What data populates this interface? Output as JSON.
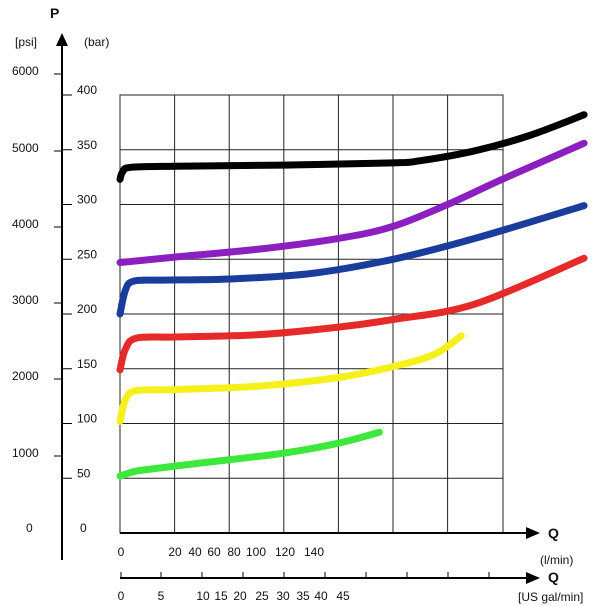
{
  "chart_data": {
    "type": "line",
    "title": "",
    "y_axis": {
      "letter": "P",
      "psi_unit": "[psi]",
      "bar_unit": "(bar)",
      "psi_zero": "0",
      "bar_zero": "0",
      "psi_ticks": [
        "6000",
        "5000",
        "4000",
        "3000",
        "2000",
        "1000"
      ],
      "bar_ticks": [
        "400",
        "350",
        "300",
        "250",
        "200",
        "150",
        "100",
        "50"
      ],
      "bar_range": [
        0,
        400
      ]
    },
    "x_axis_lmin": {
      "letter": "Q",
      "unit": "(l/min)",
      "ticks": [
        "0",
        "20",
        "40",
        "60",
        "80",
        "100",
        "120",
        "140"
      ]
    },
    "x_axis_gal": {
      "letter": "Q",
      "unit": "[US gal/min]",
      "ticks": [
        "0",
        "5",
        "10",
        "15",
        "20",
        "25",
        "30",
        "35",
        "40",
        "45"
      ]
    },
    "grid": true,
    "series": [
      {
        "color": "#000000",
        "points": [
          [
            0,
            323
          ],
          [
            1,
            330
          ],
          [
            4,
            334
          ],
          [
            20,
            335
          ],
          [
            60,
            336
          ],
          [
            100,
            338
          ],
          [
            110,
            340
          ],
          [
            130,
            349
          ],
          [
            150,
            363
          ],
          [
            170,
            382
          ]
        ]
      },
      {
        "color": "#8b1fc0",
        "points": [
          [
            0,
            247
          ],
          [
            20,
            252
          ],
          [
            50,
            259
          ],
          [
            80,
            269
          ],
          [
            100,
            280
          ],
          [
            120,
            300
          ],
          [
            140,
            323
          ],
          [
            170,
            356
          ]
        ]
      },
      {
        "color": "#1a3d9c",
        "points": [
          [
            0,
            200
          ],
          [
            2,
            222
          ],
          [
            5,
            230
          ],
          [
            15,
            231
          ],
          [
            40,
            232
          ],
          [
            70,
            237
          ],
          [
            100,
            250
          ],
          [
            130,
            269
          ],
          [
            170,
            299
          ]
        ]
      },
      {
        "color": "#e62a2a",
        "points": [
          [
            0,
            149
          ],
          [
            2,
            168
          ],
          [
            6,
            178
          ],
          [
            20,
            179
          ],
          [
            50,
            181
          ],
          [
            80,
            188
          ],
          [
            100,
            195
          ],
          [
            130,
            209
          ],
          [
            170,
            251
          ]
        ]
      },
      {
        "color": "#f5f01a",
        "points": [
          [
            0,
            102
          ],
          [
            2,
            122
          ],
          [
            6,
            130
          ],
          [
            20,
            131
          ],
          [
            50,
            134
          ],
          [
            80,
            142
          ],
          [
            100,
            152
          ],
          [
            115,
            163
          ],
          [
            125,
            180
          ]
        ]
      },
      {
        "color": "#3de83d",
        "points": [
          [
            0,
            52
          ],
          [
            5,
            56
          ],
          [
            10,
            58
          ],
          [
            30,
            64
          ],
          [
            60,
            73
          ],
          [
            80,
            82
          ],
          [
            95,
            92
          ]
        ]
      }
    ]
  }
}
